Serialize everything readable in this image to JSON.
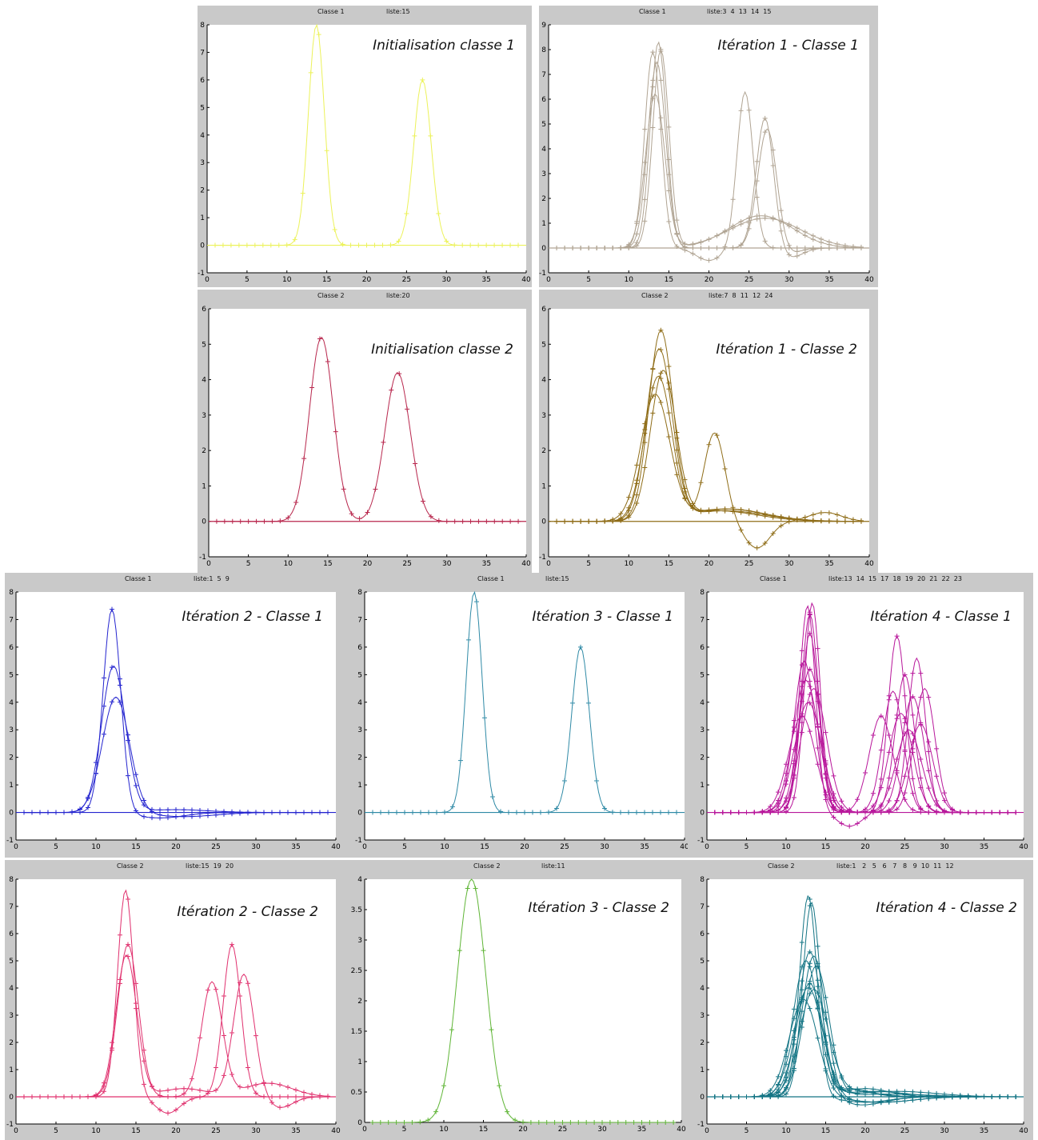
{
  "chart_data": [
    {
      "id": "p1",
      "type": "line",
      "classe_label": "Classe 1",
      "liste_label": "liste:15",
      "title": "Initialisation classe 1",
      "color": "#ecf25a",
      "xlim": [
        0,
        40
      ],
      "ylim": [
        -1,
        8
      ],
      "xticks": [
        "0",
        "5",
        "10",
        "15",
        "20",
        "25",
        "30",
        "35",
        "40"
      ],
      "yticks": [
        "-1",
        "0",
        "1",
        "2",
        "3",
        "4",
        "5",
        "6",
        "7",
        "8"
      ],
      "series": [
        {
          "peaks": [
            [
              13.7,
              8.0,
              1.0
            ],
            [
              27.0,
              6.0,
              1.1
            ]
          ]
        }
      ]
    },
    {
      "id": "p2",
      "type": "line",
      "classe_label": "Classe 1",
      "liste_label": "liste:3  4  13  14  15",
      "title": "Itération 1 - Classe 1",
      "color": "#b0a493",
      "xlim": [
        0,
        40
      ],
      "ylim": [
        -1,
        9
      ],
      "xticks": [
        "0",
        "5",
        "10",
        "15",
        "20",
        "25",
        "30",
        "35",
        "40"
      ],
      "yticks": [
        "-1",
        "0",
        "1",
        "2",
        "3",
        "4",
        "5",
        "6",
        "7",
        "8",
        "9"
      ],
      "series": [
        {
          "peaks": [
            [
              13.0,
              7.9,
              1.0
            ],
            [
              24.5,
              6.3,
              1.0
            ],
            [
              20.0,
              -0.5,
              1.6
            ]
          ]
        },
        {
          "peaks": [
            [
              13.7,
              8.3,
              1.0
            ],
            [
              27.0,
              5.3,
              1.1
            ],
            [
              30.0,
              -0.4,
              1.6
            ]
          ]
        },
        {
          "peaks": [
            [
              13.5,
              7.5,
              1.1
            ],
            [
              27.3,
              4.9,
              1.2
            ],
            [
              29.5,
              -0.3,
              1.5
            ]
          ]
        },
        {
          "peaks": [
            [
              14.0,
              8.0,
              1.0
            ],
            [
              26.5,
              1.3,
              4.0
            ]
          ]
        },
        {
          "peaks": [
            [
              13.3,
              6.2,
              1.2
            ],
            [
              27.0,
              1.2,
              4.5
            ]
          ]
        }
      ]
    },
    {
      "id": "p3",
      "type": "line",
      "classe_label": "Classe 2",
      "liste_label": "liste:20",
      "title": "Initialisation classe 2",
      "color": "#b8274d",
      "xlim": [
        0,
        40
      ],
      "ylim": [
        -1,
        6
      ],
      "xticks": [
        "0",
        "5",
        "10",
        "15",
        "20",
        "25",
        "30",
        "35",
        "40"
      ],
      "yticks": [
        "-1",
        "0",
        "1",
        "2",
        "3",
        "4",
        "5",
        "6"
      ],
      "series": [
        {
          "peaks": [
            [
              14.2,
              5.2,
              1.5
            ],
            [
              23.8,
              4.2,
              1.6
            ]
          ]
        }
      ]
    },
    {
      "id": "p4",
      "type": "line",
      "classe_label": "Classe 2",
      "liste_label": "liste:7  8  11  12  24",
      "title": "Itération 1 - Classe 2",
      "color": "#8f6d18",
      "xlim": [
        0,
        40
      ],
      "ylim": [
        -1,
        6
      ],
      "xticks": [
        "0",
        "5",
        "10",
        "15",
        "20",
        "25",
        "30",
        "35",
        "40"
      ],
      "yticks": [
        "-1",
        "0",
        "1",
        "2",
        "3",
        "4",
        "5",
        "6"
      ],
      "series": [
        {
          "peaks": [
            [
              14.0,
              5.3,
              1.5
            ],
            [
              22.0,
              0.35,
              5.0
            ]
          ]
        },
        {
          "peaks": [
            [
              13.8,
              4.8,
              1.6
            ],
            [
              22.0,
              0.3,
              5.0
            ]
          ]
        },
        {
          "peaks": [
            [
              13.7,
              4.1,
              1.7
            ],
            [
              20.7,
              2.5,
              1.3
            ],
            [
              26.0,
              -0.75,
              1.6
            ],
            [
              34.5,
              0.25,
              2.0
            ]
          ]
        },
        {
          "peaks": [
            [
              14.3,
              4.2,
              1.6
            ],
            [
              22.5,
              0.35,
              4.5
            ]
          ]
        },
        {
          "peaks": [
            [
              13.3,
              3.5,
              1.8
            ],
            [
              21.0,
              0.3,
              5.0
            ]
          ]
        }
      ]
    },
    {
      "id": "p5",
      "type": "line",
      "classe_label": "Classe 1",
      "liste_label": "liste:1  5  9",
      "title": "Itération 2 - Classe 1",
      "color": "#2424cf",
      "xlim": [
        0,
        40
      ],
      "ylim": [
        -1,
        8
      ],
      "xticks": [
        "0",
        "5",
        "10",
        "15",
        "20",
        "25",
        "30",
        "35",
        "40"
      ],
      "yticks": [
        "-1",
        "0",
        "1",
        "2",
        "3",
        "4",
        "5",
        "6",
        "7",
        "8"
      ],
      "series": [
        {
          "peaks": [
            [
              12.0,
              7.4,
              1.1
            ],
            [
              18.0,
              -0.2,
              3.0
            ]
          ]
        },
        {
          "peaks": [
            [
              12.2,
              5.3,
              1.5
            ],
            [
              20.0,
              0.1,
              4.0
            ]
          ]
        },
        {
          "peaks": [
            [
              12.5,
              4.2,
              1.7
            ],
            [
              21.0,
              -0.15,
              4.0
            ]
          ]
        }
      ]
    },
    {
      "id": "p6",
      "type": "line",
      "classe_label": "Classe 1",
      "liste_label": "liste:15",
      "title": "Itération 3 - Classe 1",
      "color": "#2f8aa6",
      "xlim": [
        0,
        40
      ],
      "ylim": [
        -1,
        8
      ],
      "xticks": [
        "0",
        "5",
        "10",
        "15",
        "20",
        "25",
        "30",
        "35",
        "40"
      ],
      "yticks": [
        "-1",
        "0",
        "1",
        "2",
        "3",
        "4",
        "5",
        "6",
        "7",
        "8"
      ],
      "series": [
        {
          "peaks": [
            [
              13.7,
              8.0,
              1.0
            ],
            [
              27.0,
              6.0,
              1.1
            ]
          ]
        }
      ]
    },
    {
      "id": "p7",
      "type": "line",
      "classe_label": "Classe 1",
      "liste_label": "liste:13  14  15  17  18  19  20  21  22  23",
      "title": "Itération 4 - Classe 1",
      "color": "#b8179b",
      "xlim": [
        0,
        40
      ],
      "ylim": [
        -1,
        8
      ],
      "xticks": [
        "0",
        "5",
        "10",
        "15",
        "20",
        "25",
        "30",
        "35",
        "40"
      ],
      "yticks": [
        "-1",
        "0",
        "1",
        "2",
        "3",
        "4",
        "5",
        "6",
        "7",
        "8"
      ],
      "series": [
        {
          "peaks": [
            [
              12.7,
              7.5,
              1.0
            ],
            [
              24.0,
              6.4,
              1.1
            ],
            [
              18.0,
              -0.5,
              1.5
            ]
          ]
        },
        {
          "peaks": [
            [
              13.3,
              7.6,
              1.0
            ],
            [
              26.5,
              5.6,
              1.1
            ]
          ]
        },
        {
          "peaks": [
            [
              13.0,
              7.2,
              1.1
            ],
            [
              25.0,
              5.0,
              1.2
            ]
          ]
        },
        {
          "peaks": [
            [
              13.0,
              5.2,
              1.4
            ],
            [
              23.5,
              4.4,
              1.3
            ]
          ]
        },
        {
          "peaks": [
            [
              12.5,
              4.8,
              1.6
            ],
            [
              27.5,
              4.5,
              1.3
            ]
          ]
        },
        {
          "peaks": [
            [
              13.5,
              4.5,
              1.6
            ],
            [
              26.0,
              4.2,
              1.4
            ]
          ]
        },
        {
          "peaks": [
            [
              12.8,
              4.0,
              1.7
            ],
            [
              24.5,
              3.6,
              1.5
            ]
          ]
        },
        {
          "peaks": [
            [
              12.0,
              3.5,
              1.7
            ],
            [
              27.0,
              3.2,
              1.5
            ]
          ]
        },
        {
          "peaks": [
            [
              13.0,
              6.5,
              1.1
            ],
            [
              25.5,
              3.0,
              1.6
            ]
          ]
        },
        {
          "peaks": [
            [
              12.3,
              5.5,
              1.3
            ],
            [
              22.0,
              3.5,
              1.5
            ]
          ]
        }
      ]
    },
    {
      "id": "p8",
      "type": "line",
      "classe_label": "Classe 2",
      "liste_label": "liste:15  19  20",
      "title": "Itération 2 - Classe 2",
      "color": "#e0306e",
      "xlim": [
        0,
        40
      ],
      "ylim": [
        -1,
        8
      ],
      "xticks": [
        "0",
        "5",
        "10",
        "15",
        "20",
        "25",
        "30",
        "35",
        "40"
      ],
      "yticks": [
        "-1",
        "0",
        "1",
        "2",
        "3",
        "4",
        "5",
        "6",
        "7",
        "8"
      ],
      "series": [
        {
          "peaks": [
            [
              13.7,
              7.6,
              1.0
            ],
            [
              27.0,
              5.6,
              1.1
            ],
            [
              19.0,
              -0.6,
              1.5
            ]
          ]
        },
        {
          "peaks": [
            [
              14.0,
              5.6,
              1.3
            ],
            [
              24.5,
              4.2,
              1.3
            ],
            [
              31.5,
              0.5,
              3.0
            ]
          ]
        },
        {
          "peaks": [
            [
              13.8,
              5.2,
              1.3
            ],
            [
              28.5,
              4.5,
              1.3
            ],
            [
              21.0,
              0.3,
              3.0
            ],
            [
              33.0,
              -0.4,
              1.6
            ]
          ]
        }
      ]
    },
    {
      "id": "p9",
      "type": "line",
      "classe_label": "Classe 2",
      "liste_label": "liste:11",
      "title": "Itération 3 - Classe 2",
      "color": "#5fb536",
      "xlim": [
        0,
        40
      ],
      "ylim": [
        0,
        4
      ],
      "xticks": [
        "0",
        "5",
        "10",
        "15",
        "20",
        "25",
        "30",
        "35",
        "40"
      ],
      "yticks": [
        "0",
        "0.5",
        "1",
        "1.5",
        "2",
        "2.5",
        "3",
        "3.5",
        "4"
      ],
      "series": [
        {
          "peaks": [
            [
              13.5,
              4.0,
              1.8
            ]
          ]
        }
      ]
    },
    {
      "id": "p10",
      "type": "line",
      "classe_label": "Classe 2",
      "liste_label": "liste:1   2   5   6   7   8   9  10  11  12",
      "title": "Itération 4 - Classe 2",
      "color": "#137484",
      "xlim": [
        0,
        40
      ],
      "ylim": [
        -1,
        8
      ],
      "xticks": [
        "0",
        "5",
        "10",
        "15",
        "20",
        "25",
        "30",
        "35",
        "40"
      ],
      "yticks": [
        "-1",
        "0",
        "1",
        "2",
        "3",
        "4",
        "5",
        "6",
        "7",
        "8"
      ],
      "series": [
        {
          "peaks": [
            [
              12.8,
              7.4,
              1.1
            ],
            [
              20.0,
              -0.2,
              3.0
            ]
          ]
        },
        {
          "peaks": [
            [
              13.2,
              7.1,
              1.1
            ],
            [
              18.0,
              0.3,
              2.5
            ]
          ]
        },
        {
          "peaks": [
            [
              13.0,
              5.3,
              1.5
            ],
            [
              21.0,
              0.2,
              4.0
            ]
          ]
        },
        {
          "peaks": [
            [
              13.5,
              5.2,
              1.5
            ],
            [
              22.0,
              -0.2,
              4.0
            ]
          ]
        },
        {
          "peaks": [
            [
              12.5,
              5.0,
              1.6
            ],
            [
              20.0,
              0.3,
              3.0
            ]
          ]
        },
        {
          "peaks": [
            [
              13.8,
              4.8,
              1.6
            ],
            [
              23.0,
              0.1,
              5.0
            ]
          ]
        },
        {
          "peaks": [
            [
              13.0,
              4.2,
              1.7
            ],
            [
              19.5,
              -0.3,
              3.0
            ]
          ]
        },
        {
          "peaks": [
            [
              12.8,
              4.0,
              1.8
            ],
            [
              24.0,
              0.2,
              5.0
            ]
          ]
        },
        {
          "peaks": [
            [
              13.5,
              3.9,
              1.8
            ],
            [
              18.5,
              0.2,
              3.0
            ]
          ]
        },
        {
          "peaks": [
            [
              12.2,
              3.6,
              1.8
            ],
            [
              22.0,
              -0.2,
              4.0
            ]
          ]
        }
      ]
    }
  ]
}
